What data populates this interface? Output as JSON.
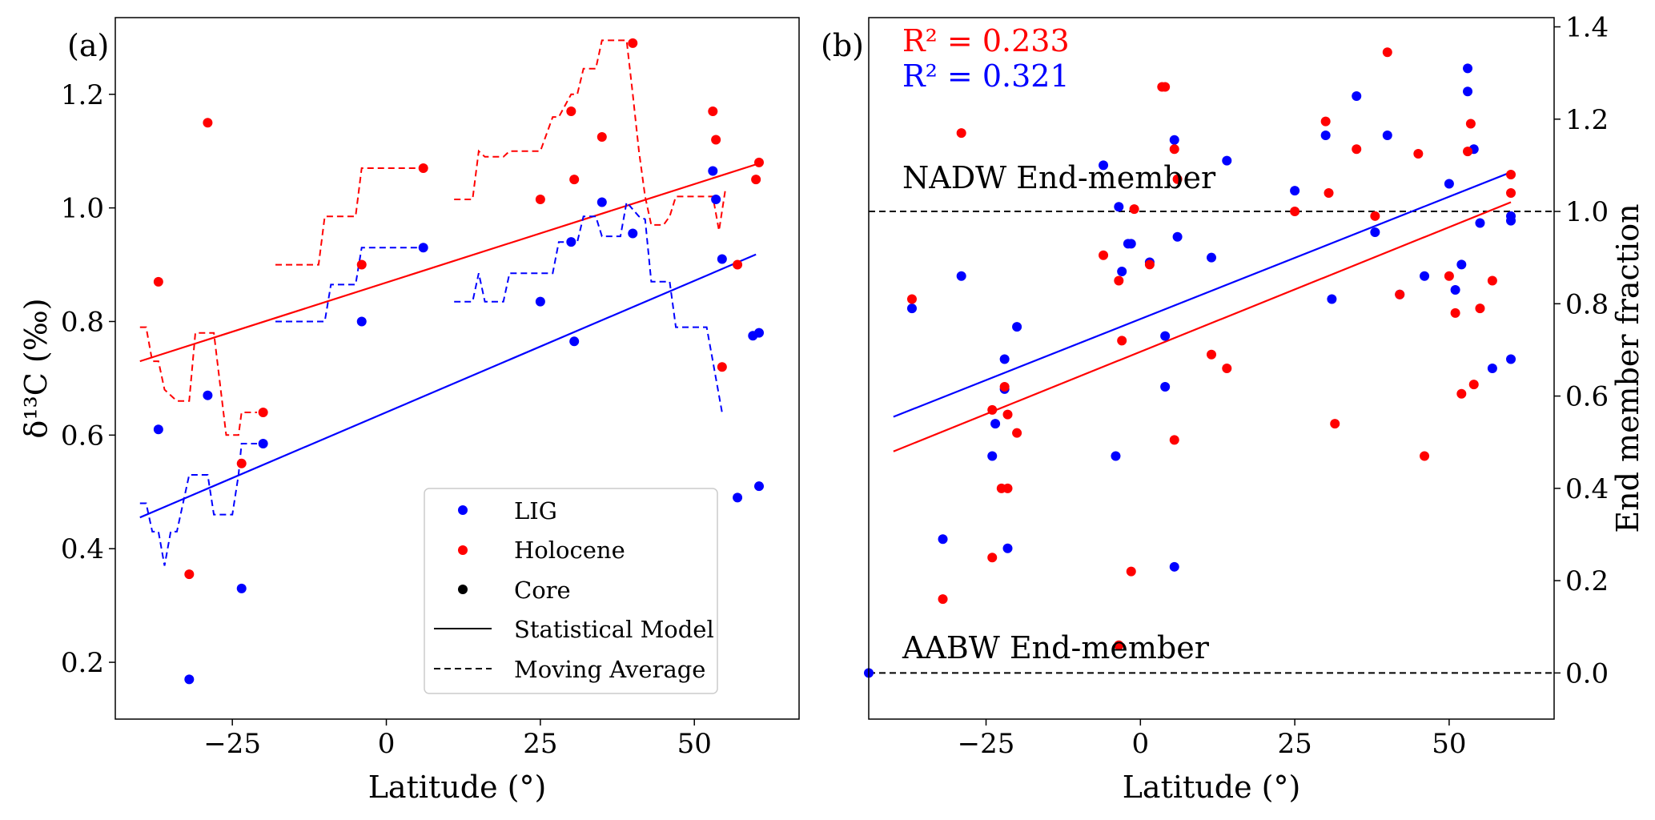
{
  "colors": {
    "lig": "#0000ff",
    "holocene": "#ff0000",
    "core": "#000000",
    "axis": "#000000"
  },
  "chart_data": [
    {
      "panel": "a",
      "type": "scatter",
      "label": "(a)",
      "xlabel": "Latitude (°)",
      "ylabel": "δ¹³C (‰)",
      "xlim": [
        -44,
        67
      ],
      "ylim": [
        0.1,
        1.335
      ],
      "xticks": [
        -25,
        0,
        25,
        50
      ],
      "xtick_labels": [
        "−25",
        "0",
        "25",
        "50"
      ],
      "yticks": [
        0.2,
        0.4,
        0.6,
        0.8,
        1.0,
        1.2
      ],
      "ytick_labels": [
        "0.2",
        "0.4",
        "0.6",
        "0.8",
        "1.0",
        "1.2"
      ],
      "legend": {
        "position": "lower-right",
        "entries": [
          {
            "label": "LIG",
            "kind": "dot",
            "color": "lig"
          },
          {
            "label": "Holocene",
            "kind": "dot",
            "color": "holocene"
          },
          {
            "label": "Core",
            "kind": "dot",
            "color": "core"
          },
          {
            "label": "Statistical Model",
            "kind": "solid",
            "color": "core"
          },
          {
            "label": "Moving Average",
            "kind": "dashed",
            "color": "core"
          }
        ]
      },
      "series": [
        {
          "name": "LIG",
          "kind": "points",
          "color": "lig",
          "x": [
            -37,
            -29,
            -32,
            -23.5,
            -20,
            -4,
            6,
            25,
            30,
            30.5,
            35,
            40,
            53,
            53.5,
            54.5,
            57,
            59.5,
            60.5,
            60.5
          ],
          "y": [
            0.61,
            0.67,
            0.17,
            0.33,
            0.585,
            0.8,
            0.93,
            0.835,
            0.94,
            0.765,
            1.01,
            0.955,
            1.065,
            1.015,
            0.91,
            0.49,
            0.775,
            0.78,
            0.51
          ]
        },
        {
          "name": "Holocene",
          "kind": "points",
          "color": "holocene",
          "x": [
            -37,
            -29,
            -32,
            -23.5,
            -20,
            -4,
            6,
            25,
            30,
            30.5,
            35,
            40,
            53,
            53.5,
            54.5,
            57,
            60,
            60.5
          ],
          "y": [
            0.87,
            1.15,
            0.355,
            0.55,
            0.64,
            0.9,
            1.07,
            1.015,
            1.17,
            1.05,
            1.125,
            1.29,
            1.17,
            1.12,
            0.72,
            0.9,
            1.05,
            1.08
          ]
        },
        {
          "name": "LIG statistical model",
          "kind": "line",
          "color": "lig",
          "x": [
            -40,
            60
          ],
          "y": [
            0.455,
            0.918
          ]
        },
        {
          "name": "Holocene statistical model",
          "kind": "line",
          "color": "holocene",
          "x": [
            -40,
            61
          ],
          "y": [
            0.73,
            1.08
          ]
        },
        {
          "name": "LIG moving average",
          "kind": "dashed",
          "color": "lig",
          "segments": [
            {
              "x": [
                -40,
                -39,
                -38,
                -37,
                -36,
                -35,
                -34,
                -32,
                -30,
                -29,
                -28,
                -27,
                -26,
                -25,
                -24,
                -23.5,
                -22,
                -21
              ],
              "y": [
                0.48,
                0.48,
                0.43,
                0.43,
                0.37,
                0.43,
                0.43,
                0.53,
                0.53,
                0.53,
                0.46,
                0.46,
                0.46,
                0.46,
                0.53,
                0.585,
                0.585,
                0.585
              ]
            },
            {
              "x": [
                -18,
                -10,
                -9,
                -5,
                -4,
                -2,
                5
              ],
              "y": [
                0.8,
                0.8,
                0.865,
                0.865,
                0.93,
                0.93,
                0.93
              ]
            },
            {
              "x": [
                11,
                14,
                15,
                16,
                17,
                19,
                20,
                22,
                25,
                27,
                28,
                31,
                32,
                34,
                35,
                38,
                39,
                41,
                42,
                43,
                45,
                46,
                47,
                48,
                52,
                53,
                54.5
              ],
              "y": [
                0.835,
                0.835,
                0.885,
                0.835,
                0.835,
                0.835,
                0.885,
                0.885,
                0.885,
                0.885,
                0.94,
                0.94,
                0.985,
                0.985,
                0.95,
                0.95,
                1.01,
                0.985,
                0.98,
                0.87,
                0.87,
                0.87,
                0.79,
                0.79,
                0.79,
                0.73,
                0.64
              ]
            }
          ]
        },
        {
          "name": "Holocene moving average",
          "kind": "dashed",
          "color": "holocene",
          "segments": [
            {
              "x": [
                -40,
                -39,
                -38,
                -37,
                -36,
                -34,
                -32,
                -31,
                -29,
                -28,
                -27,
                -26,
                -25,
                -24,
                -23.5,
                -22,
                -21
              ],
              "y": [
                0.79,
                0.79,
                0.73,
                0.73,
                0.68,
                0.66,
                0.66,
                0.78,
                0.78,
                0.78,
                0.69,
                0.6,
                0.6,
                0.6,
                0.64,
                0.64,
                0.64
              ]
            },
            {
              "x": [
                -18,
                -11,
                -10,
                -5,
                -4,
                -2,
                5
              ],
              "y": [
                0.9,
                0.9,
                0.985,
                0.985,
                1.07,
                1.07,
                1.07
              ]
            },
            {
              "x": [
                11,
                14,
                15,
                16,
                17,
                19,
                20,
                22,
                25,
                27,
                28,
                30,
                31,
                32,
                34,
                35,
                38,
                39,
                40,
                41,
                42,
                43,
                45,
                46,
                47,
                52,
                53,
                54,
                55
              ],
              "y": [
                1.015,
                1.015,
                1.1,
                1.09,
                1.09,
                1.09,
                1.1,
                1.1,
                1.1,
                1.16,
                1.16,
                1.2,
                1.2,
                1.245,
                1.245,
                1.295,
                1.295,
                1.295,
                1.2,
                1.1,
                1.02,
                0.97,
                0.97,
                0.985,
                1.02,
                1.02,
                1.02,
                0.96,
                1.03
              ]
            }
          ]
        }
      ]
    },
    {
      "panel": "b",
      "type": "scatter",
      "label": "(b)",
      "xlabel": "Latitude (°)",
      "ylabel": "End member fraction",
      "y_axis_side": "right",
      "xlim": [
        -44,
        67
      ],
      "ylim": [
        -0.1,
        1.42
      ],
      "xticks": [
        -25,
        0,
        25,
        50
      ],
      "xtick_labels": [
        "−25",
        "0",
        "25",
        "50"
      ],
      "yticks": [
        0.0,
        0.2,
        0.4,
        0.6,
        0.8,
        1.0,
        1.2,
        1.4
      ],
      "ytick_labels": [
        "0.0",
        "0.2",
        "0.4",
        "0.6",
        "0.8",
        "1.0",
        "1.2",
        "1.4"
      ],
      "r2": [
        {
          "text": "R² = 0.233",
          "color": "holocene"
        },
        {
          "text": "R² = 0.321",
          "color": "lig"
        }
      ],
      "reference_lines": [
        {
          "y": 1.0,
          "label": "NADW End-member"
        },
        {
          "y": 0.0,
          "label": "AABW End-member"
        }
      ],
      "series": [
        {
          "name": "LIG",
          "kind": "points",
          "color": "lig",
          "x": [
            -44,
            -37,
            -29,
            -32,
            -23.5,
            -22,
            -22,
            -20,
            -24,
            -21.5,
            -6,
            -3.5,
            -3,
            -2,
            -1.5,
            -4,
            1.5,
            4,
            4,
            5.5,
            5.5,
            6,
            11.5,
            14,
            25,
            30,
            31,
            35,
            38,
            40,
            42,
            46,
            50,
            51,
            52,
            53,
            53,
            54,
            55,
            57,
            60,
            60,
            60
          ],
          "y": [
            0.0,
            0.79,
            0.86,
            0.29,
            0.54,
            0.615,
            0.68,
            0.75,
            0.47,
            0.27,
            1.1,
            1.01,
            0.87,
            0.93,
            0.93,
            0.47,
            0.89,
            0.73,
            0.62,
            1.155,
            0.23,
            0.945,
            0.9,
            1.11,
            1.045,
            1.165,
            0.81,
            1.25,
            0.955,
            1.165,
            0.82,
            0.86,
            1.06,
            0.83,
            0.885,
            1.26,
            1.31,
            1.135,
            0.975,
            0.66,
            0.98,
            0.99,
            0.68
          ]
        },
        {
          "name": "Holocene",
          "kind": "points",
          "color": "holocene",
          "x": [
            -37,
            -29,
            -32,
            -24,
            -22.5,
            -21.5,
            -22,
            -20,
            -24,
            -21.5,
            -6,
            -3.5,
            -3,
            -1.5,
            -1,
            -3.5,
            1.5,
            3.5,
            4,
            5.5,
            5.5,
            6,
            11.5,
            14,
            25,
            30,
            30.5,
            31.5,
            35,
            38,
            40,
            42,
            45,
            46,
            50,
            51,
            52,
            53,
            53.5,
            54,
            55,
            57,
            60,
            60
          ],
          "y": [
            0.81,
            1.17,
            0.16,
            0.57,
            0.4,
            0.56,
            0.62,
            0.52,
            0.25,
            0.4,
            0.905,
            0.85,
            0.72,
            0.22,
            1.005,
            0.06,
            0.885,
            1.27,
            1.27,
            1.135,
            0.505,
            1.07,
            0.69,
            0.66,
            1.0,
            1.195,
            1.04,
            0.54,
            1.135,
            0.99,
            1.345,
            0.82,
            1.125,
            0.47,
            0.86,
            0.78,
            0.605,
            1.13,
            1.19,
            0.625,
            0.79,
            0.85,
            1.04,
            1.08
          ]
        },
        {
          "name": "LIG statistical model",
          "kind": "line",
          "color": "lig",
          "x": [
            -40,
            60
          ],
          "y": [
            0.555,
            1.085
          ]
        },
        {
          "name": "Holocene statistical model",
          "kind": "line",
          "color": "holocene",
          "x": [
            -40,
            60
          ],
          "y": [
            0.48,
            1.02
          ]
        }
      ]
    }
  ]
}
